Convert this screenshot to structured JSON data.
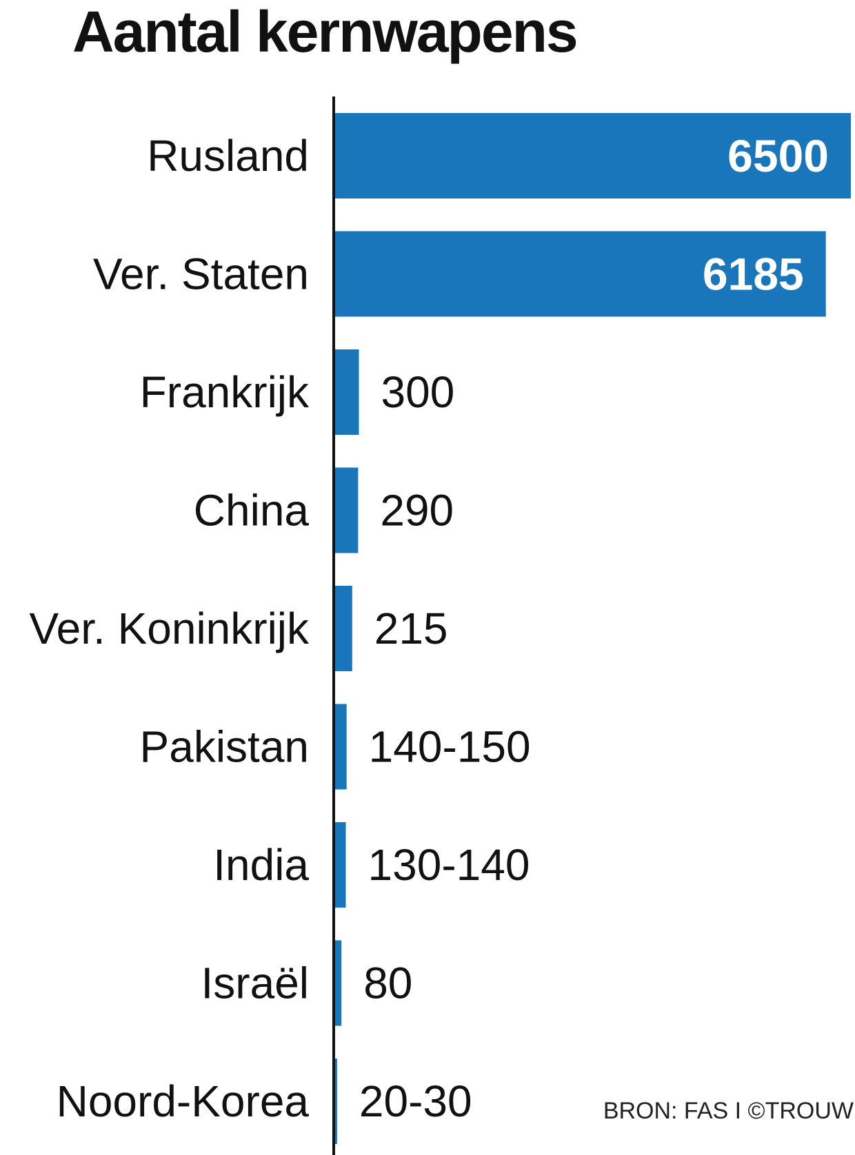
{
  "chart_data": {
    "type": "bar",
    "orientation": "horizontal",
    "title": "Aantal kernwapens",
    "categories": [
      "Rusland",
      "Ver. Staten",
      "Frankrijk",
      "China",
      "Ver. Koninkrijk",
      "Pakistan",
      "India",
      "Israël",
      "Noord-Korea"
    ],
    "values": [
      6500,
      6185,
      300,
      290,
      215,
      145,
      135,
      80,
      25
    ],
    "value_labels": [
      "6500",
      "6185",
      "300",
      "290",
      "215",
      "140-150",
      "130-140",
      "80",
      "20-30"
    ],
    "xlim": [
      0,
      6500
    ],
    "grid": false,
    "legend": "none",
    "bar_color": "#1a76ba"
  },
  "source": "BRON: FAS I ©TROUW"
}
